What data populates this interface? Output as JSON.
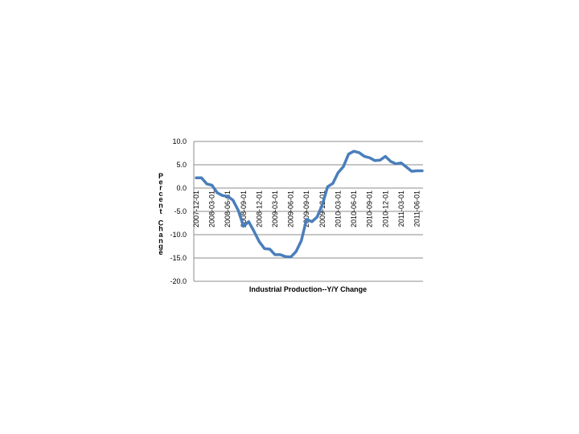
{
  "chart_data": {
    "type": "line",
    "title": "Industrial Production--Y/Y Change",
    "xlabel": "",
    "ylabel": "Percent Change",
    "ylim": [
      -20,
      10
    ],
    "y_ticks": [
      "10.0",
      "5.0",
      "0.0",
      "-5.0",
      "-10.0",
      "-15.0",
      "-20.0"
    ],
    "y_tick_values": [
      10,
      5,
      0,
      -5,
      -10,
      -15,
      -20
    ],
    "grid": true,
    "legend": "none",
    "line_color": "#4a7ebb",
    "x": [
      "2007-12-01",
      "2008-01-01",
      "2008-02-01",
      "2008-03-01",
      "2008-04-01",
      "2008-05-01",
      "2008-06-01",
      "2008-07-01",
      "2008-08-01",
      "2008-09-01",
      "2008-10-01",
      "2008-11-01",
      "2008-12-01",
      "2009-01-01",
      "2009-02-01",
      "2009-03-01",
      "2009-04-01",
      "2009-05-01",
      "2009-06-01",
      "2009-07-01",
      "2009-08-01",
      "2009-09-01",
      "2009-10-01",
      "2009-11-01",
      "2009-12-01",
      "2010-01-01",
      "2010-02-01",
      "2010-03-01",
      "2010-04-01",
      "2010-05-01",
      "2010-06-01",
      "2010-07-01",
      "2010-08-01",
      "2010-09-01",
      "2010-10-01",
      "2010-11-01",
      "2010-12-01",
      "2011-01-01",
      "2011-02-01",
      "2011-03-01",
      "2011-04-01",
      "2011-05-01",
      "2011-06-01",
      "2011-07-01"
    ],
    "x_tick_labels": [
      "2007-12-01",
      "2008-03-01",
      "2008-06-01",
      "2008-09-01",
      "2008-12-01",
      "2009-03-01",
      "2009-06-01",
      "2009-09-01",
      "2009-12-01",
      "2010-03-01",
      "2010-06-01",
      "2010-09-01",
      "2010-12-01",
      "2011-03-01",
      "2011-06-01"
    ],
    "series": [
      {
        "values": [
          2.2,
          2.2,
          0.9,
          0.6,
          -1.0,
          -1.6,
          -1.8,
          -2.6,
          -4.8,
          -8.2,
          -7.2,
          -9.3,
          -11.5,
          -13.0,
          -13.1,
          -14.3,
          -14.3,
          -14.7,
          -14.8,
          -13.6,
          -11.3,
          -6.7,
          -7.2,
          -6.2,
          -3.6,
          0.3,
          1.0,
          3.3,
          4.6,
          7.3,
          7.9,
          7.6,
          6.8,
          6.5,
          5.9,
          6.0,
          6.8,
          5.7,
          5.2,
          5.4,
          4.5,
          3.6,
          3.7,
          3.7
        ]
      }
    ]
  }
}
